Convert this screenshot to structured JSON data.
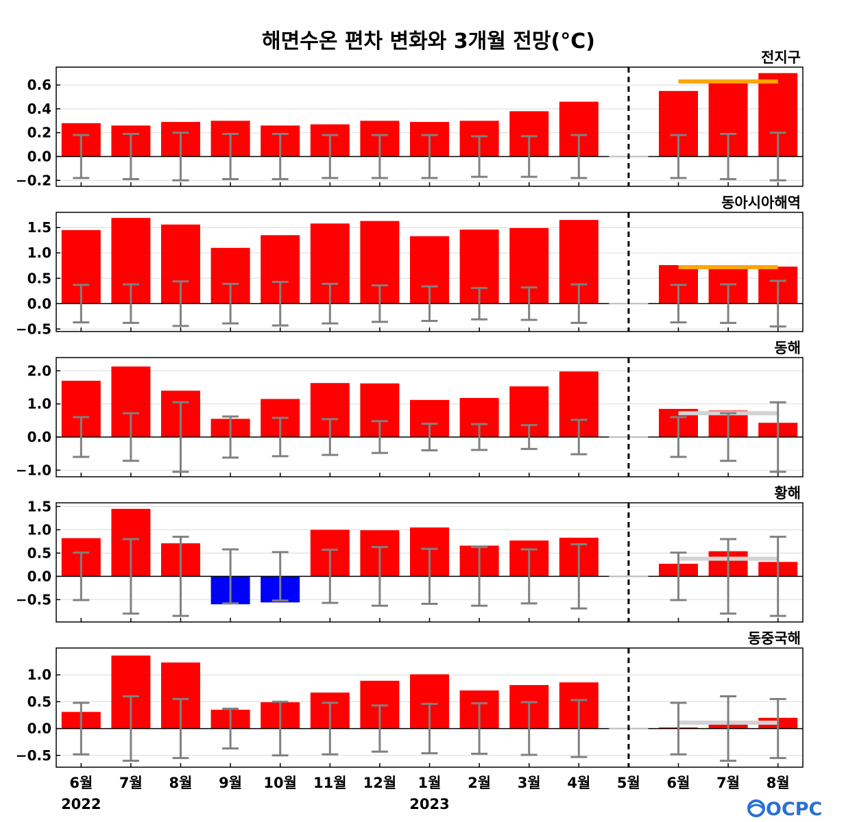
{
  "title": "해면수온 편차 변화와 3개월 전망(°C)",
  "logo": "OCPC",
  "colors": {
    "positive": "#ff0000",
    "negative": "#0000ff",
    "errorbar": "#808080",
    "zero_line": "#000000",
    "grid": "#d9d9d9",
    "outlook_orange": "#ffa500",
    "outlook_gray": "#d3d3d3"
  },
  "chart_data": {
    "type": "bar",
    "categories": [
      "6월",
      "7월",
      "8월",
      "9월",
      "10월",
      "11월",
      "12월",
      "1월",
      "2월",
      "3월",
      "4월",
      "5월",
      "6월",
      "7월",
      "8월"
    ],
    "years": [
      {
        "label": "2022",
        "index": 0
      },
      {
        "label": "2023",
        "index": 7
      }
    ],
    "divider_after_category": "5월",
    "panels": [
      {
        "name": "전지구",
        "ylim": [
          -0.25,
          0.75
        ],
        "yticks": [
          -0.2,
          0.0,
          0.2,
          0.4,
          0.6
        ],
        "ytick_labels": [
          "−0.2",
          "0.0",
          "0.2",
          "0.4",
          "0.6"
        ],
        "values": [
          0.28,
          0.26,
          0.29,
          0.3,
          0.26,
          0.27,
          0.3,
          0.29,
          0.3,
          0.38,
          0.46,
          null,
          0.55,
          0.63,
          0.7
        ],
        "error": [
          0.18,
          0.19,
          0.2,
          0.19,
          0.19,
          0.18,
          0.18,
          0.18,
          0.17,
          0.17,
          0.18,
          null,
          0.18,
          0.19,
          0.2
        ],
        "outlook": {
          "value": 0.63,
          "color": "orange"
        }
      },
      {
        "name": "동아시아해역",
        "ylim": [
          -0.55,
          1.8
        ],
        "yticks": [
          -0.5,
          0.0,
          0.5,
          1.0,
          1.5
        ],
        "ytick_labels": [
          "−0.5",
          "0.0",
          "0.5",
          "1.0",
          "1.5"
        ],
        "values": [
          1.45,
          1.69,
          1.56,
          1.1,
          1.35,
          1.58,
          1.63,
          1.33,
          1.46,
          1.49,
          1.65,
          null,
          0.76,
          0.72,
          0.73
        ],
        "error": [
          0.37,
          0.38,
          0.44,
          0.39,
          0.43,
          0.39,
          0.36,
          0.34,
          0.31,
          0.32,
          0.38,
          null,
          0.37,
          0.38,
          0.45
        ],
        "outlook": {
          "value": 0.72,
          "color": "orange"
        }
      },
      {
        "name": "동해",
        "ylim": [
          -1.2,
          2.4
        ],
        "yticks": [
          -1.0,
          0.0,
          1.0,
          2.0
        ],
        "ytick_labels": [
          "−1.0",
          "0.0",
          "1.0",
          "2.0"
        ],
        "values": [
          1.7,
          2.13,
          1.4,
          0.55,
          1.15,
          1.63,
          1.62,
          1.12,
          1.18,
          1.53,
          1.98,
          null,
          0.85,
          0.8,
          0.43
        ],
        "error": [
          0.6,
          0.72,
          1.05,
          0.62,
          0.58,
          0.54,
          0.48,
          0.4,
          0.39,
          0.36,
          0.52,
          null,
          0.6,
          0.72,
          1.05
        ],
        "outlook": {
          "value": 0.72,
          "color": "gray"
        }
      },
      {
        "name": "황해",
        "ylim": [
          -0.98,
          1.58
        ],
        "yticks": [
          -0.5,
          0.0,
          0.5,
          1.0,
          1.5
        ],
        "ytick_labels": [
          "−0.5",
          "0.0",
          "0.5",
          "1.0",
          "1.5"
        ],
        "values": [
          0.82,
          1.45,
          0.71,
          -0.6,
          -0.56,
          1.0,
          0.99,
          1.05,
          0.66,
          0.77,
          0.83,
          null,
          0.27,
          0.54,
          0.31
        ],
        "error": [
          0.51,
          0.8,
          0.85,
          0.58,
          0.52,
          0.57,
          0.63,
          0.59,
          0.63,
          0.58,
          0.69,
          null,
          0.51,
          0.8,
          0.85
        ],
        "outlook": {
          "value": 0.38,
          "color": "gray"
        }
      },
      {
        "name": "동중국해",
        "ylim": [
          -0.72,
          1.5
        ],
        "yticks": [
          -0.5,
          0.0,
          0.5,
          1.0
        ],
        "ytick_labels": [
          "−0.5",
          "0.0",
          "0.5",
          "1.0"
        ],
        "values": [
          0.31,
          1.36,
          1.23,
          0.35,
          0.49,
          0.67,
          0.89,
          1.01,
          0.71,
          0.81,
          0.86,
          null,
          0.02,
          0.11,
          0.2
        ],
        "error": [
          0.48,
          0.6,
          0.55,
          0.37,
          0.5,
          0.48,
          0.43,
          0.46,
          0.47,
          0.49,
          0.53,
          null,
          0.48,
          0.6,
          0.55
        ],
        "outlook": {
          "value": 0.11,
          "color": "gray"
        }
      }
    ]
  }
}
